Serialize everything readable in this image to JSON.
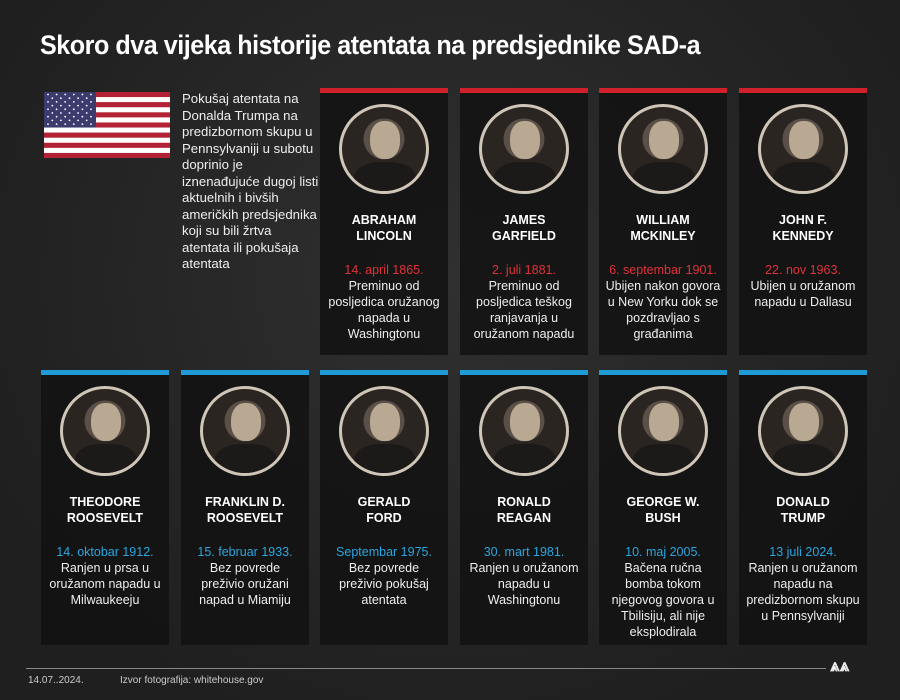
{
  "title": "Skoro dva vijeka historije atentata na predsjednike SAD-a",
  "intro": "Pokušaj atentata na Donalda Trumpa na predizbornom skupu u Pennsylvaniji u subotu doprinio je iznenađujuće dugoj listi aktuelnih i bivših američkih predsjednika koji su bili žrtva atentata ili pokušaja atentata",
  "colors": {
    "killed": "#d0202a",
    "attempt": "#1e9bd7"
  },
  "killed": [
    {
      "name": "ABRAHAM LINCOLN",
      "date": "14. april 1865.",
      "desc": "Preminuo od posljedica oružanog napada u Washingtonu"
    },
    {
      "name": "JAMES GARFIELD",
      "date": "2. juli 1881.",
      "desc": "Preminuo od posljedica teškog ranjavanja u oružanom napadu"
    },
    {
      "name": "WILLIAM MCKINLEY",
      "date": "6. septembar 1901.",
      "desc": "Ubijen nakon govora u New Yorku dok se pozdravljao s građanima"
    },
    {
      "name": "JOHN F. KENNEDY",
      "date": "22. nov 1963.",
      "desc": "Ubijen u oružanom napadu u Dallasu"
    }
  ],
  "survived": [
    {
      "name": "THEODORE ROOSEVELT",
      "date": "14. oktobar 1912.",
      "desc": "Ranjen u prsa u oružanom napadu u Milwaukeeju"
    },
    {
      "name": "FRANKLIN D. ROOSEVELT",
      "date": "15. februar 1933.",
      "desc": "Bez povrede preživio oružani napad u Miamiju"
    },
    {
      "name": "GERALD FORD",
      "date": "Septembar 1975.",
      "desc": "Bez povrede preživio pokušaj atentata"
    },
    {
      "name": "RONALD REAGAN",
      "date": "30. mart 1981.",
      "desc": "Ranjen u oružanom napadu u Washingtonu"
    },
    {
      "name": "GEORGE W. BUSH",
      "date": "10. maj 2005.",
      "desc": "Bačena ručna bomba tokom njegovog govora u Tbilisiju, ali nije eksplodirala"
    },
    {
      "name": "DONALD TRUMP",
      "date": "13 juli 2024.",
      "desc": "Ranjen u oružanom napadu na predizbornom skupu u Pennsylvaniji"
    }
  ],
  "footer": {
    "date": "14.07..2024.",
    "source": "Izvor fotografija: whitehouse.gov",
    "logo": "AA"
  }
}
